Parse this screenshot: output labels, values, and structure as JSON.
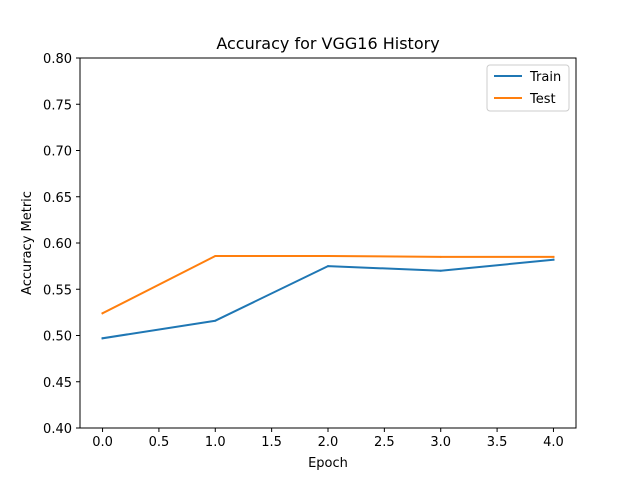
{
  "chart_data": {
    "type": "line",
    "title": "Accuracy for VGG16 History",
    "xlabel": "Epoch",
    "ylabel": "Accuracy Metric",
    "xlim": [
      -0.2,
      4.2
    ],
    "ylim": [
      0.4,
      0.8
    ],
    "xticks": [
      0.0,
      0.5,
      1.0,
      1.5,
      2.0,
      2.5,
      3.0,
      3.5,
      4.0
    ],
    "xtick_labels": [
      "0.0",
      "0.5",
      "1.0",
      "1.5",
      "2.0",
      "2.5",
      "3.0",
      "3.5",
      "4.0"
    ],
    "yticks": [
      0.4,
      0.45,
      0.5,
      0.55,
      0.6,
      0.65,
      0.7,
      0.75,
      0.8
    ],
    "ytick_labels": [
      "0.40",
      "0.45",
      "0.50",
      "0.55",
      "0.60",
      "0.65",
      "0.70",
      "0.75",
      "0.80"
    ],
    "grid": false,
    "legend_position": "top-right",
    "x": [
      0,
      1,
      2,
      3,
      4
    ],
    "series": [
      {
        "name": "Train",
        "color": "#1f77b4",
        "values": [
          0.497,
          0.516,
          0.575,
          0.57,
          0.582
        ]
      },
      {
        "name": "Test",
        "color": "#ff7f0e",
        "values": [
          0.524,
          0.586,
          0.586,
          0.585,
          0.585
        ]
      }
    ]
  }
}
